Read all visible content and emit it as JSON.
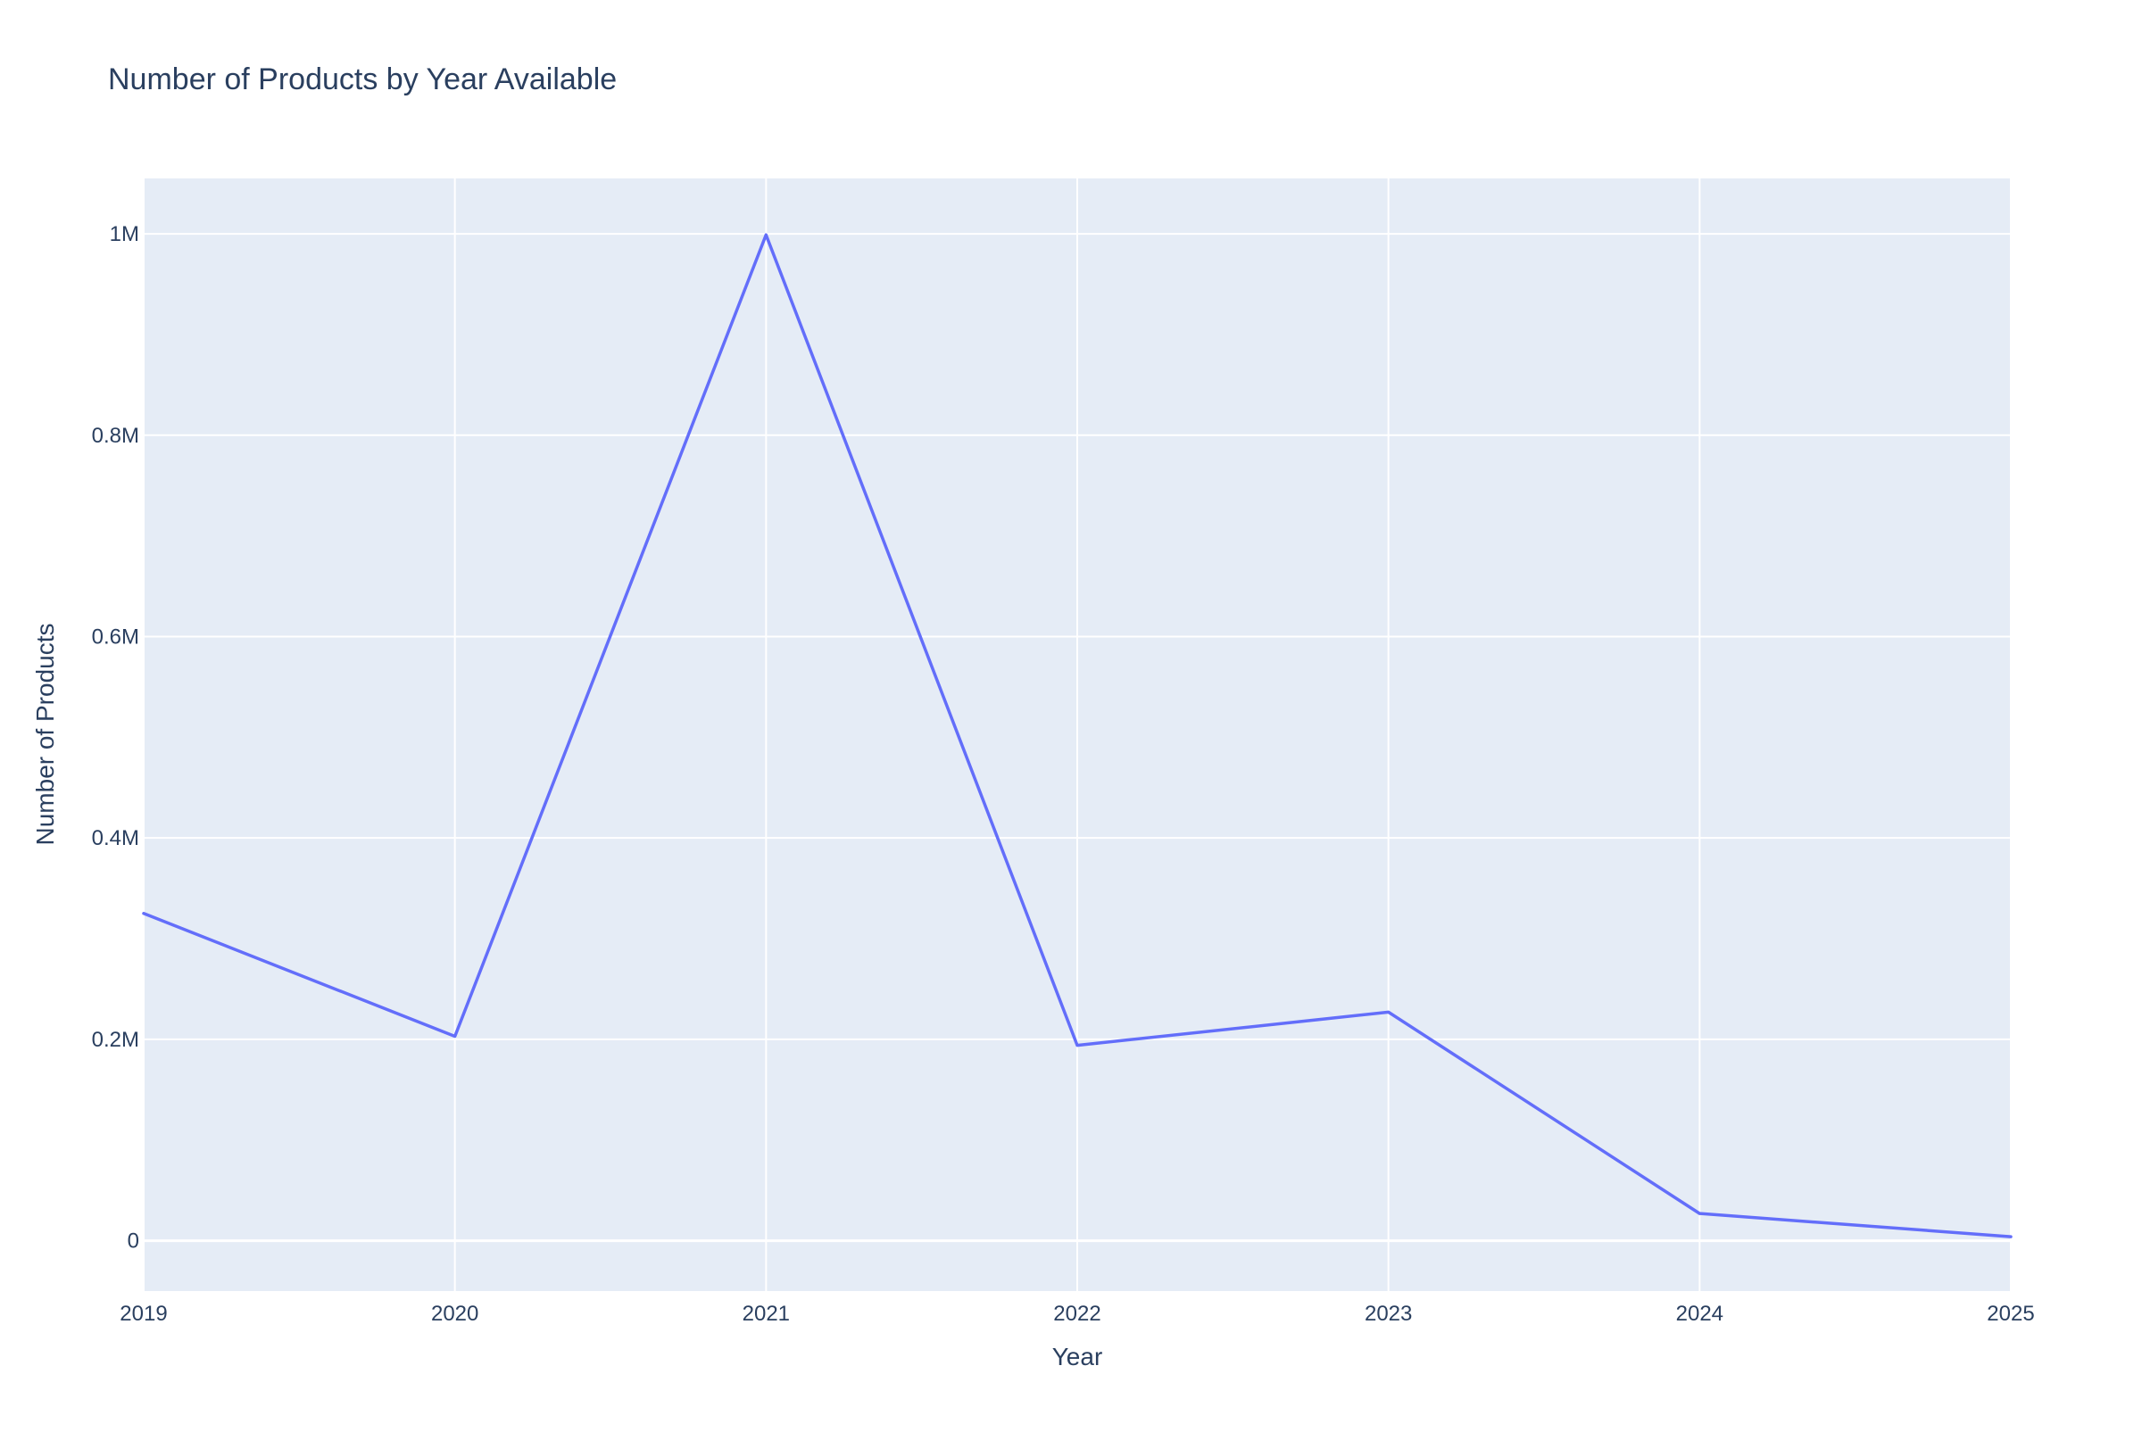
{
  "chart_data": {
    "type": "line",
    "title": "Number of Products by Year Available",
    "xlabel": "Year",
    "ylabel": "Number of Products",
    "x": [
      2019,
      2020,
      2021,
      2022,
      2023,
      2024,
      2025
    ],
    "series": [
      {
        "values": [
          325000,
          203000,
          999000,
          194000,
          227000,
          27000,
          4000
        ]
      }
    ],
    "xlim": [
      2019,
      2025
    ],
    "ylim": [
      -50000,
      1055000
    ],
    "x_ticks": [
      2019,
      2020,
      2021,
      2022,
      2023,
      2024,
      2025
    ],
    "x_tick_labels": [
      "2019",
      "2020",
      "2021",
      "2022",
      "2023",
      "2024",
      "2025"
    ],
    "y_ticks": [
      0,
      200000,
      400000,
      600000,
      800000,
      1000000
    ],
    "y_tick_labels": [
      "0",
      "0.2M",
      "0.4M",
      "0.6M",
      "0.8M",
      "1M"
    ],
    "grid": true,
    "colors": {
      "line": "#636efa",
      "plot_background": "#e5ecf6",
      "grid": "#ffffff",
      "text": "#2a3f5f"
    }
  }
}
